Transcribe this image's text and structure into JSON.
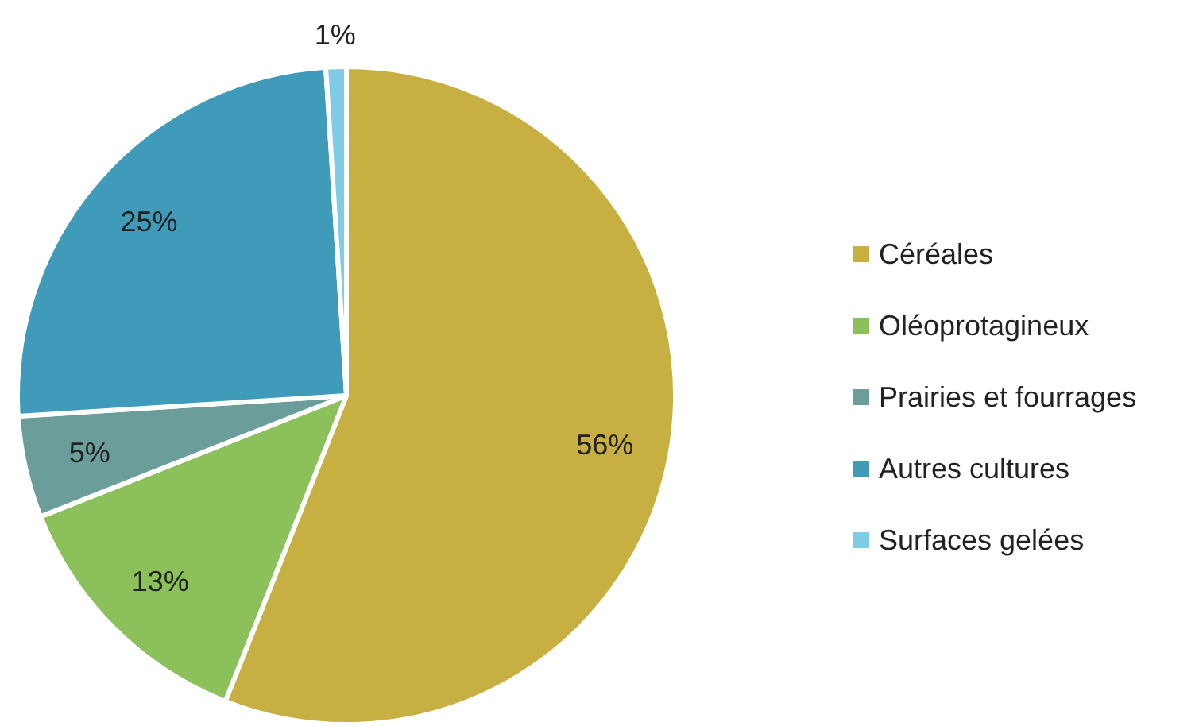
{
  "chart_data": {
    "type": "pie",
    "categories": [
      "Céréales",
      "Oléoprotagineux",
      "Prairies et fourrages",
      "Autres cultures",
      "Surfaces gelées"
    ],
    "values": [
      56,
      13,
      5,
      25,
      1
    ],
    "colors": [
      "#c8af42",
      "#8cc05a",
      "#6b9e9a",
      "#3f9bb9",
      "#7fcce6"
    ],
    "value_labels": [
      "56%",
      "13%",
      "5%",
      "25%",
      "1%"
    ],
    "legend": "right"
  }
}
